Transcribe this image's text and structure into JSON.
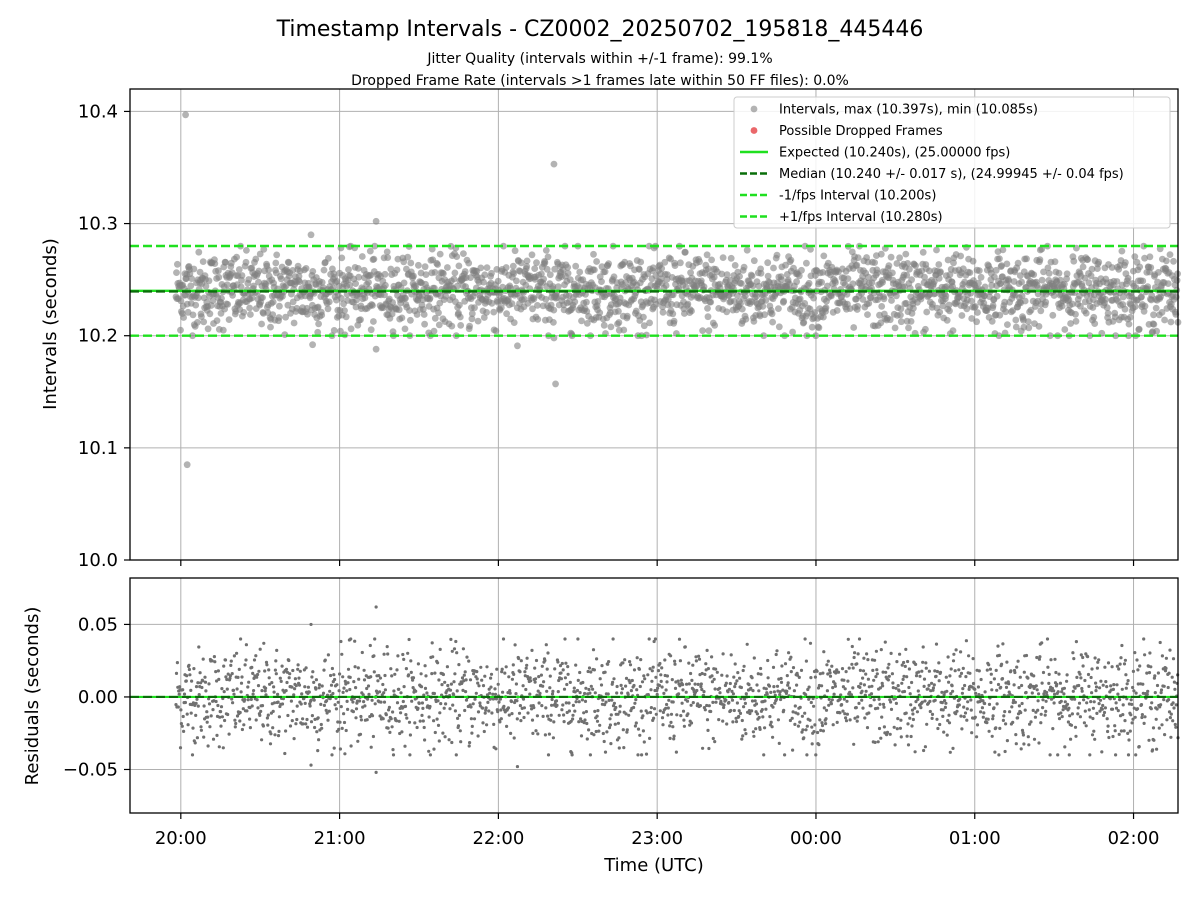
{
  "chart_data": [
    {
      "type": "scatter",
      "panel": "intervals",
      "title": "Timestamp Intervals - CZ0002_20250702_195818_445446",
      "subtitle_lines": [
        "Jitter Quality (intervals within +/-1 frame): 99.1%",
        "Dropped Frame Rate (intervals >1 frames late within 50 FF files): 0.0%"
      ],
      "xlabel": "",
      "ylabel": "Intervals (seconds)",
      "x_range_hours": [
        19.68,
        26.28
      ],
      "ylim": [
        10.0,
        10.42
      ],
      "x_ticks": [
        {
          "value": 20,
          "label": "20:00"
        },
        {
          "value": 21,
          "label": "21:00"
        },
        {
          "value": 22,
          "label": "22:00"
        },
        {
          "value": 23,
          "label": "23:00"
        },
        {
          "value": 24,
          "label": "00:00"
        },
        {
          "value": 25,
          "label": "01:00"
        },
        {
          "value": 26,
          "label": "02:00"
        }
      ],
      "y_ticks": [
        {
          "value": 10.0,
          "label": "10.0"
        },
        {
          "value": 10.1,
          "label": "10.1"
        },
        {
          "value": 10.2,
          "label": "10.2"
        },
        {
          "value": 10.3,
          "label": "10.3"
        },
        {
          "value": 10.4,
          "label": "10.4"
        }
      ],
      "grid": true,
      "legend_position": "top-right",
      "point_count": 2250,
      "x_start_hour": 19.97,
      "x_end_hour": 26.28,
      "spread": 0.017,
      "series": [
        {
          "name": "Intervals, max (10.397s), min (10.085s)",
          "kind": "points",
          "color": "#808080",
          "outliers": [
            {
              "x": 20.03,
              "y": 10.397
            },
            {
              "x": 20.04,
              "y": 10.085
            },
            {
              "x": 22.35,
              "y": 10.353
            },
            {
              "x": 22.36,
              "y": 10.157
            },
            {
              "x": 21.23,
              "y": 10.302
            },
            {
              "x": 21.23,
              "y": 10.188
            },
            {
              "x": 20.82,
              "y": 10.29
            },
            {
              "x": 20.83,
              "y": 10.192
            },
            {
              "x": 22.12,
              "y": 10.191
            },
            {
              "x": 22.35,
              "y": 10.198
            }
          ]
        },
        {
          "name": "Possible Dropped Frames",
          "kind": "points",
          "color": "#e8575a",
          "values": []
        },
        {
          "name": "Expected (10.240s), (25.00000 fps)",
          "kind": "hline",
          "y": 10.24,
          "color": "#1fe01f",
          "style": "solid"
        },
        {
          "name": "Median (10.240 +/- 0.017 s), (24.99945 +/- 0.04 fps)",
          "kind": "hline",
          "y": 10.2395,
          "color": "#0a6e0a",
          "style": "dashed"
        },
        {
          "name": "-1/fps Interval (10.200s)",
          "kind": "hline",
          "y": 10.2,
          "color": "#1fe01f",
          "style": "dashed"
        },
        {
          "name": "+1/fps Interval (10.280s)",
          "kind": "hline",
          "y": 10.28,
          "color": "#1fe01f",
          "style": "dashed"
        }
      ]
    },
    {
      "type": "scatter",
      "panel": "residuals",
      "xlabel": "Time (UTC)",
      "ylabel": "Residuals (seconds)",
      "x_range_hours": [
        19.68,
        26.28
      ],
      "ylim": [
        -0.08,
        0.082
      ],
      "y_ticks": [
        {
          "value": 0.05,
          "label": "0.05"
        },
        {
          "value": 0.0,
          "label": "0.00"
        },
        {
          "value": -0.05,
          "label": "−0.05"
        }
      ],
      "grid": true,
      "series": [
        {
          "name": "Residuals",
          "kind": "points",
          "color": "#707070",
          "outliers": [
            {
              "x": 21.23,
              "y": 0.062
            },
            {
              "x": 20.82,
              "y": 0.05
            },
            {
              "x": 21.23,
              "y": -0.052
            },
            {
              "x": 20.82,
              "y": -0.047
            },
            {
              "x": 22.12,
              "y": -0.048
            }
          ]
        },
        {
          "name": "Zero line",
          "kind": "hline",
          "y": 0.0,
          "color": "#1fe01f",
          "style": "solid"
        },
        {
          "name": "Zero dashed",
          "kind": "hline",
          "y": 0.0,
          "color": "#0a6e0a",
          "style": "dashed"
        }
      ]
    }
  ]
}
